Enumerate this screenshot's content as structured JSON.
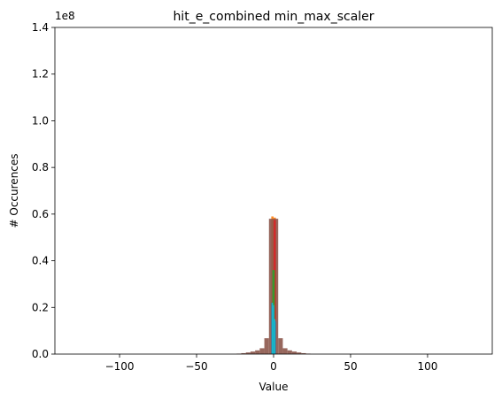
{
  "chart_data": {
    "type": "bar",
    "title": "hit_e_combined min_max_scaler",
    "xlabel": "Value",
    "ylabel": "# Occurences",
    "y_offset_label": "1e8",
    "xlim": [
      -142,
      142
    ],
    "ylim": [
      0,
      140000000
    ],
    "x_ticks": [
      -100,
      -50,
      0,
      50,
      100
    ],
    "x_tick_labels": [
      "−100",
      "−50",
      "0",
      "50",
      "100"
    ],
    "y_ticks": [
      0,
      20000000,
      40000000,
      60000000,
      80000000,
      100000000,
      120000000,
      140000000
    ],
    "y_tick_labels": [
      "0.0",
      "0.2",
      "0.4",
      "0.6",
      "0.8",
      "1.0",
      "1.2",
      "1.4"
    ],
    "grid": false,
    "series": [
      {
        "color": "#ff7f0e",
        "bins": [
          {
            "x0": -1.5,
            "x1": 0.0,
            "value": 59000000
          },
          {
            "x0": 0.0,
            "x1": 1.5,
            "value": 58500000
          }
        ]
      },
      {
        "color": "#8c564b",
        "bins": [
          {
            "x0": -24,
            "x1": -21,
            "value": 200000
          },
          {
            "x0": -21,
            "x1": -18,
            "value": 400000
          },
          {
            "x0": -18,
            "x1": -15,
            "value": 700000
          },
          {
            "x0": -15,
            "x1": -12,
            "value": 1100000
          },
          {
            "x0": -12,
            "x1": -9,
            "value": 1600000
          },
          {
            "x0": -9,
            "x1": -6,
            "value": 2500000
          },
          {
            "x0": -6,
            "x1": -3,
            "value": 6800000
          },
          {
            "x0": -3,
            "x1": 0,
            "value": 58000000
          },
          {
            "x0": 0,
            "x1": 3,
            "value": 58000000
          },
          {
            "x0": 3,
            "x1": 6,
            "value": 6800000
          },
          {
            "x0": 6,
            "x1": 9,
            "value": 2500000
          },
          {
            "x0": 9,
            "x1": 12,
            "value": 1600000
          },
          {
            "x0": 12,
            "x1": 15,
            "value": 1100000
          },
          {
            "x0": 15,
            "x1": 18,
            "value": 700000
          },
          {
            "x0": 18,
            "x1": 21,
            "value": 400000
          },
          {
            "x0": 21,
            "x1": 24,
            "value": 200000
          }
        ]
      },
      {
        "color": "#d62728",
        "bins": [
          {
            "x0": 0.0,
            "x1": 1.5,
            "value": 57500000
          }
        ]
      },
      {
        "color": "#2ca02c",
        "bins": [
          {
            "x0": -0.8,
            "x1": 0.8,
            "value": 36000000
          }
        ]
      },
      {
        "color": "#1f77b4",
        "bins": [
          {
            "x0": -1.5,
            "x1": -0.5,
            "value": 22000000
          },
          {
            "x0": -0.5,
            "x1": 0.5,
            "value": 20000000
          },
          {
            "x0": 0.5,
            "x1": 1.5,
            "value": 14000000
          }
        ]
      },
      {
        "color": "#17becf",
        "bins": [
          {
            "x0": -1.2,
            "x1": -0.4,
            "value": 22000000
          },
          {
            "x0": -0.4,
            "x1": 0.4,
            "value": 21000000
          },
          {
            "x0": 0.4,
            "x1": 1.2,
            "value": 15000000
          }
        ]
      }
    ]
  }
}
